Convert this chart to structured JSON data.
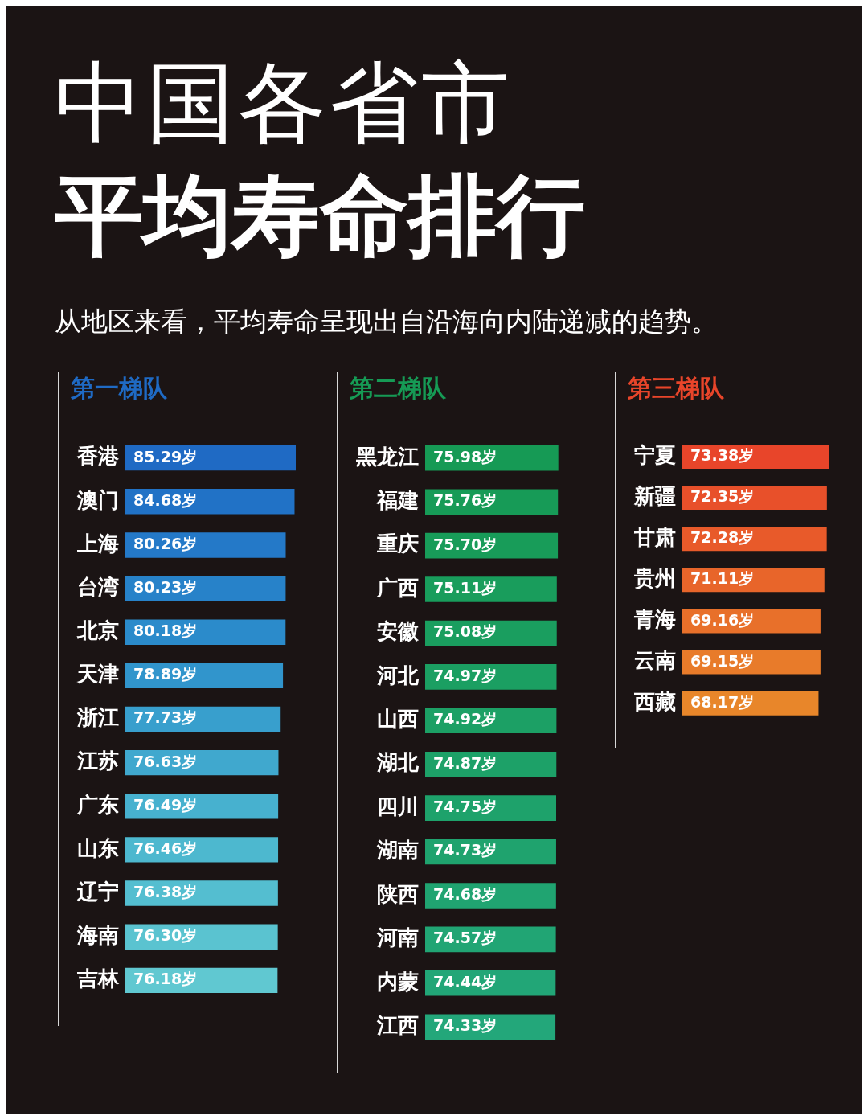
{
  "chart_data": [
    {
      "type": "other",
      "title": "中国各省市",
      "subtitle": "平均寿命排行",
      "annotations": [
        "从地区来看，平均寿命呈现出自沿海向内陆递减的趋势。"
      ]
    },
    {
      "type": "bar",
      "orientation": "horizontal",
      "title": "第一梯队",
      "categories": [
        "香港",
        "澳门",
        "上海",
        "台湾",
        "北京",
        "天津",
        "浙江",
        "江苏",
        "广东",
        "山东",
        "辽宁",
        "海南",
        "吉林"
      ],
      "values": [
        85.29,
        84.68,
        80.26,
        80.23,
        80.18,
        78.89,
        77.73,
        76.63,
        76.49,
        76.46,
        76.38,
        76.3,
        76.18
      ],
      "value_labels": [
        "85.29岁",
        "84.68岁",
        "80.26岁",
        "80.23岁",
        "80.18岁",
        "78.89岁",
        "77.73岁",
        "76.63岁",
        "76.49岁",
        "76.46岁",
        "76.38岁",
        "76.30岁",
        "76.18岁"
      ],
      "colors": [
        "#1f6ac4",
        "#2172c6",
        "#2479c8",
        "#2782c9",
        "#2b8bcb",
        "#3195cc",
        "#389fcd",
        "#40a8ce",
        "#47b1cf",
        "#4db8cf",
        "#54bed0",
        "#5ac3d0",
        "#60c8d1"
      ]
    },
    {
      "type": "bar",
      "orientation": "horizontal",
      "title": "第二梯队",
      "categories": [
        "黑龙江",
        "福建",
        "重庆",
        "广西",
        "安徽",
        "河北",
        "山西",
        "湖北",
        "四川",
        "湖南",
        "陕西",
        "河南",
        "内蒙",
        "江西"
      ],
      "values": [
        75.98,
        75.76,
        75.7,
        75.11,
        75.08,
        74.97,
        74.92,
        74.87,
        74.75,
        74.73,
        74.68,
        74.57,
        74.44,
        74.33
      ],
      "value_labels": [
        "75.98岁",
        "75.76岁",
        "75.70岁",
        "75.11岁",
        "75.08岁",
        "74.97岁",
        "74.92岁",
        "74.87岁",
        "74.75岁",
        "74.73岁",
        "74.68岁",
        "74.57岁",
        "74.44岁",
        "74.33岁"
      ],
      "colors": [
        "#169a55",
        "#179b57",
        "#189c59",
        "#199d5c",
        "#1a9e5f",
        "#1b9f62",
        "#1ca065",
        "#1da168",
        "#1ea26b",
        "#1fa36e",
        "#20a471",
        "#21a574",
        "#22a677",
        "#23a77a"
      ]
    },
    {
      "type": "bar",
      "orientation": "horizontal",
      "title": "第三梯队",
      "categories": [
        "宁夏",
        "新疆",
        "甘肃",
        "贵州",
        "青海",
        "云南",
        "西藏"
      ],
      "values": [
        73.38,
        72.35,
        72.28,
        71.11,
        69.16,
        69.15,
        68.17
      ],
      "value_labels": [
        "73.38岁",
        "72.35岁",
        "72.28岁",
        "71.11岁",
        "69.16岁",
        "69.15岁",
        "68.17岁"
      ],
      "colors": [
        "#e8452a",
        "#e8502a",
        "#e85a2a",
        "#e8652a",
        "#e8702a",
        "#e87b2a",
        "#e8862a"
      ]
    }
  ]
}
